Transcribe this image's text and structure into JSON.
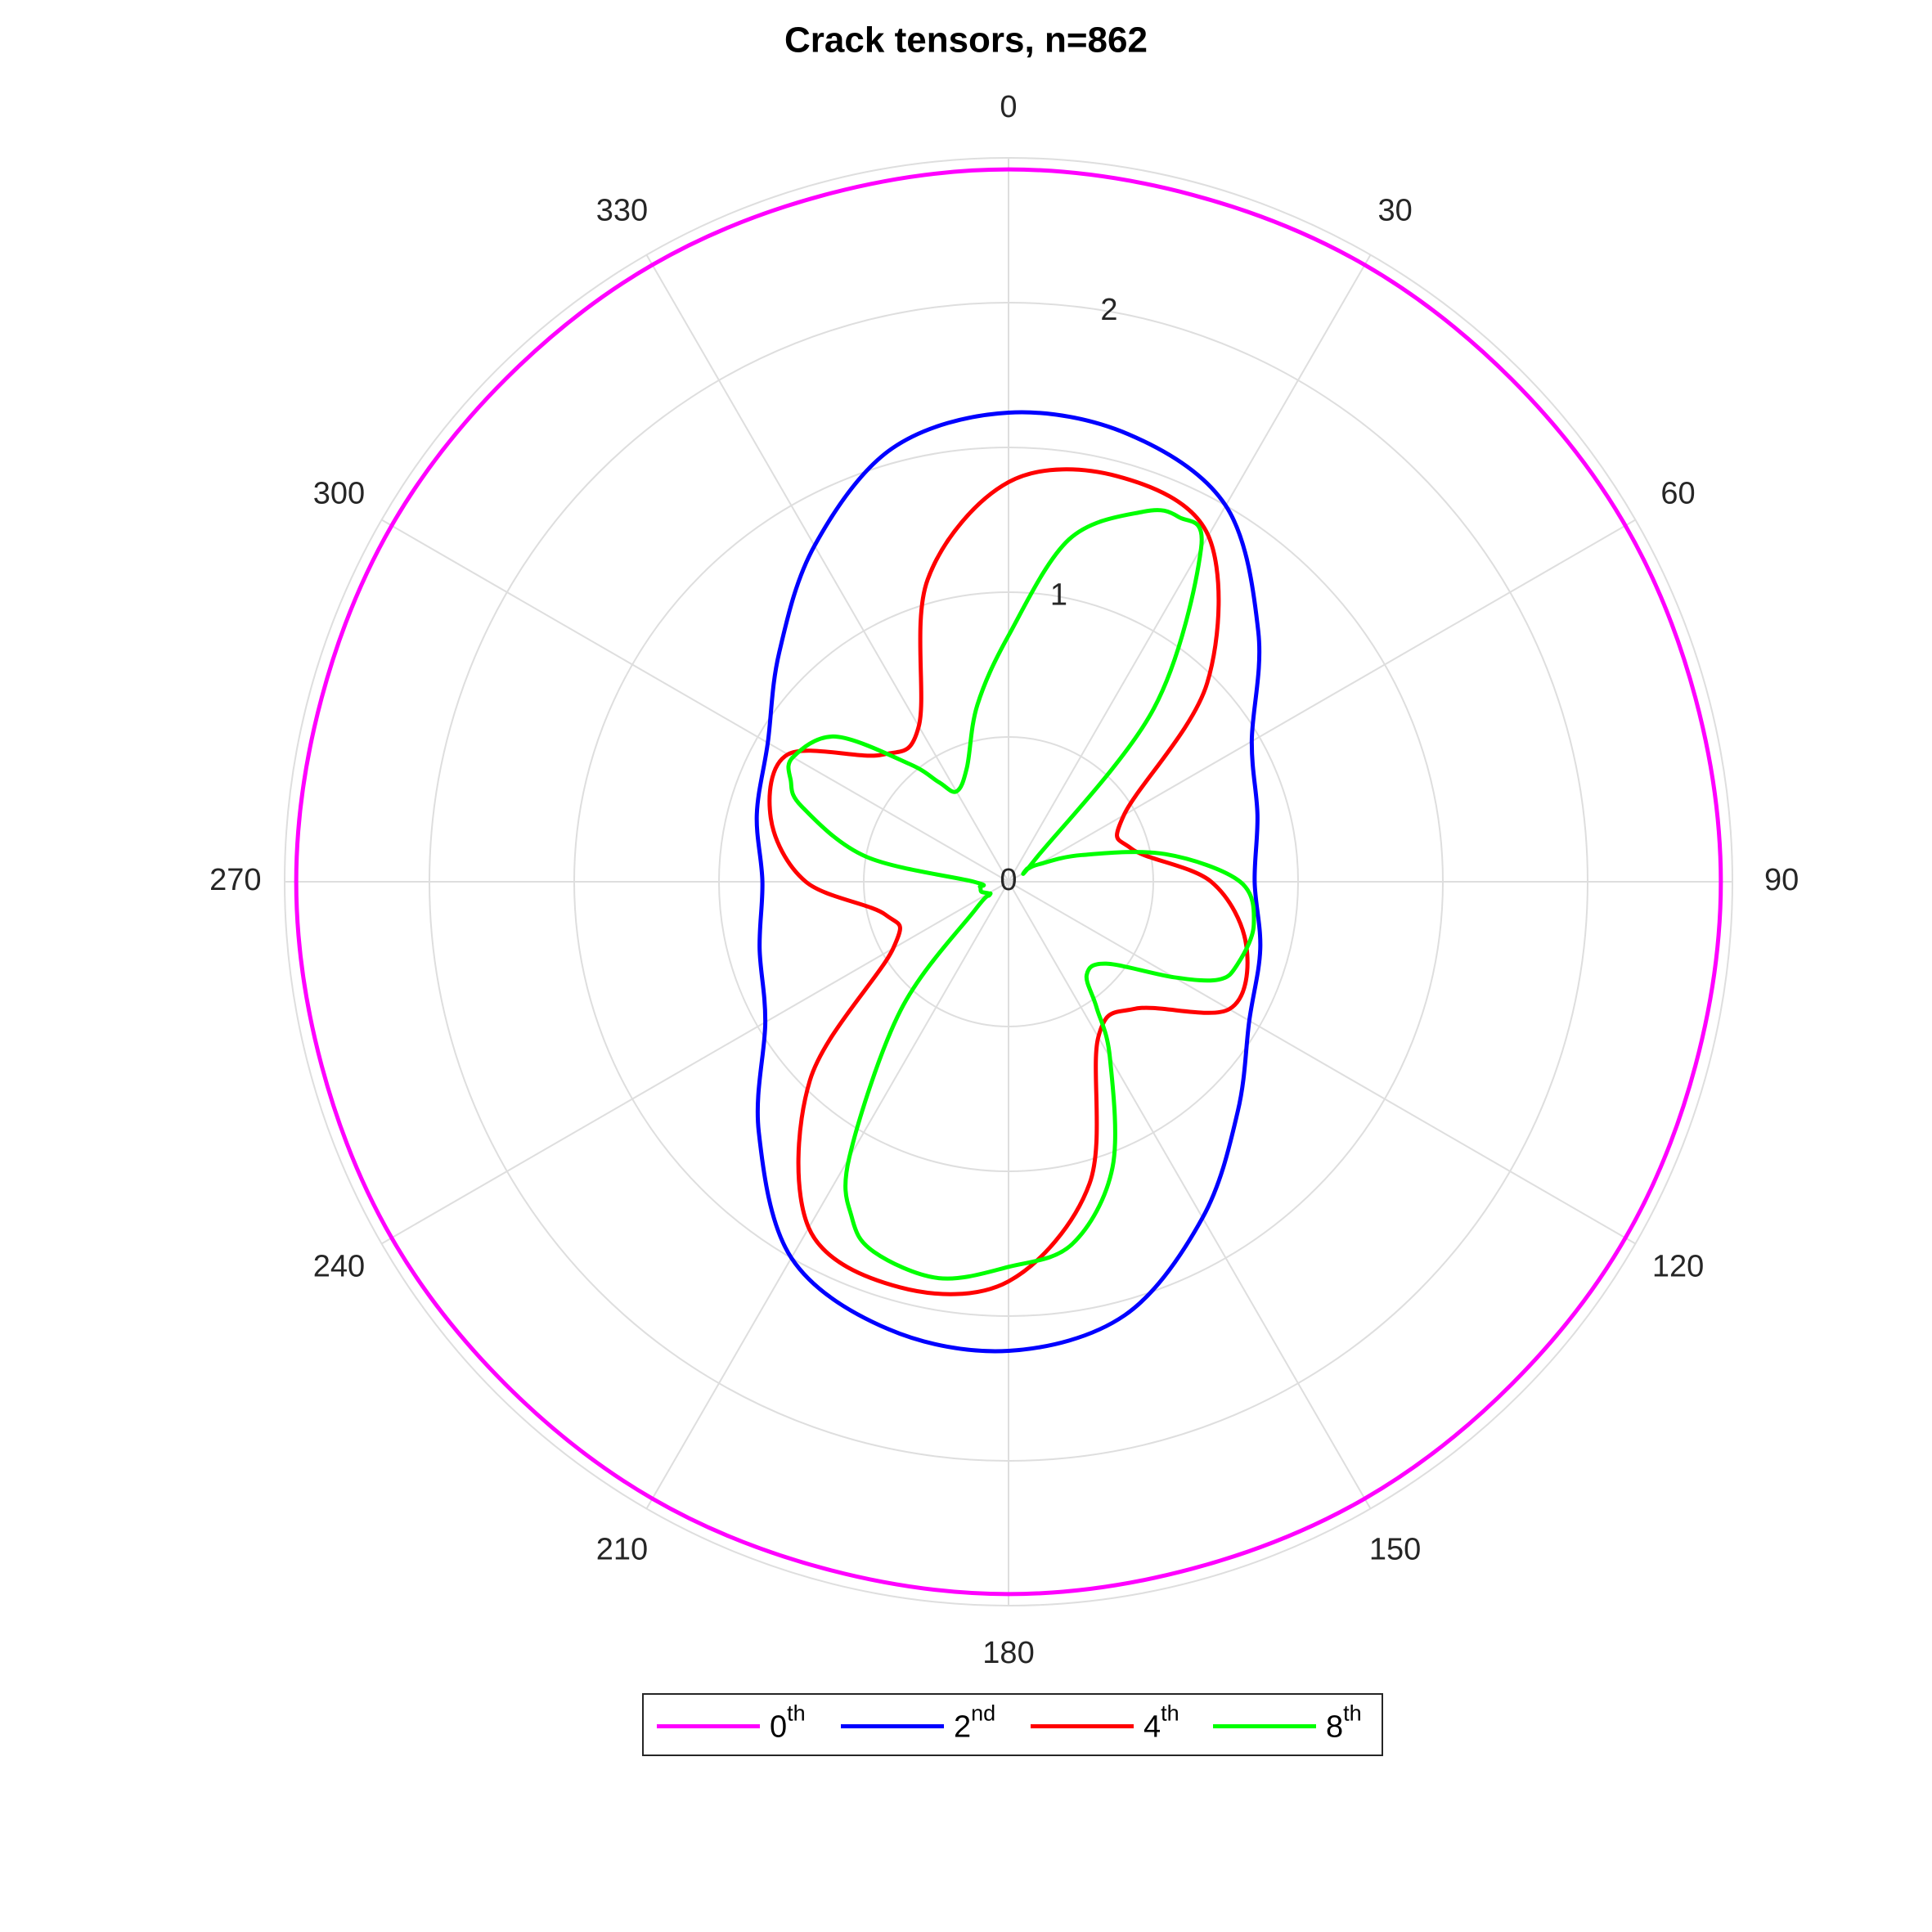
{
  "chart_data": {
    "type": "polar-line",
    "title": "Crack tensors, n=862",
    "theta_zero_location": "top",
    "theta_direction": "clockwise",
    "theta_ticks": [
      0,
      30,
      60,
      90,
      120,
      150,
      180,
      210,
      240,
      270,
      300,
      330
    ],
    "theta_tick_labels": [
      "0",
      "30",
      "60",
      "90",
      "120",
      "150",
      "180",
      "210",
      "240",
      "270",
      "300",
      "330"
    ],
    "r_lim": [
      0,
      2.5
    ],
    "r_ticks_labeled": [
      0,
      1,
      2
    ],
    "r_tick_labels": [
      "0",
      "1",
      "2"
    ],
    "r_tick_label_angle_deg": 10,
    "grid": true,
    "legend_placement": "bottom",
    "series": [
      {
        "name": "0",
        "name_sup": "th",
        "color": "#ff00ff",
        "theta_deg": [
          0,
          30,
          60,
          90,
          120,
          150,
          180,
          210,
          240,
          270,
          300,
          330
        ],
        "r": [
          2.46,
          2.46,
          2.46,
          2.46,
          2.46,
          2.46,
          2.46,
          2.46,
          2.46,
          2.46,
          2.46,
          2.46
        ]
      },
      {
        "name": "2",
        "name_sup": "nd",
        "color": "#0000ff",
        "theta_deg": [
          0,
          15,
          30,
          45,
          60,
          75,
          90,
          105,
          120,
          135,
          150,
          165,
          180,
          195,
          210,
          225,
          240,
          255,
          270,
          285,
          300,
          315,
          330,
          345
        ],
        "r": [
          1.62,
          1.6,
          1.5,
          1.22,
          0.97,
          0.89,
          0.85,
          0.9,
          0.96,
          1.12,
          1.34,
          1.55,
          1.62,
          1.6,
          1.5,
          1.22,
          0.97,
          0.89,
          0.85,
          0.9,
          0.96,
          1.12,
          1.34,
          1.55
        ]
      },
      {
        "name": "4",
        "name_sup": "th",
        "color": "#ff0000",
        "theta_deg": [
          0,
          15,
          30,
          45,
          60,
          75,
          90,
          105,
          120,
          135,
          150,
          165,
          180,
          195,
          210,
          225,
          240,
          255,
          270,
          285,
          300,
          315,
          330,
          345
        ],
        "r": [
          1.38,
          1.45,
          1.38,
          0.97,
          0.46,
          0.44,
          0.7,
          0.85,
          0.88,
          0.62,
          0.62,
          1.08,
          1.38,
          1.45,
          1.38,
          0.97,
          0.46,
          0.44,
          0.7,
          0.85,
          0.88,
          0.62,
          0.62,
          1.08
        ]
      },
      {
        "name": "8",
        "name_sup": "th",
        "color": "#00ff00",
        "theta_deg": [
          0,
          10,
          20,
          25,
          30,
          40,
          50,
          55,
          60,
          70,
          80,
          90,
          100,
          110,
          115,
          120,
          130,
          140,
          145,
          150,
          160,
          170,
          180,
          190,
          200,
          205,
          210,
          220,
          230,
          235,
          240,
          250,
          260,
          270,
          280,
          290,
          295,
          300,
          310,
          320,
          325,
          330,
          340,
          350
        ],
        "r": [
          0.85,
          1.2,
          1.36,
          1.39,
          1.33,
          0.78,
          0.12,
          0.08,
          0.12,
          0.27,
          0.55,
          0.8,
          0.86,
          0.84,
          0.8,
          0.66,
          0.44,
          0.42,
          0.53,
          0.7,
          1.05,
          1.27,
          1.33,
          1.39,
          1.36,
          1.28,
          1.1,
          0.58,
          0.15,
          0.08,
          0.08,
          0.1,
          0.1,
          0.12,
          0.5,
          0.76,
          0.83,
          0.86,
          0.78,
          0.53,
          0.42,
          0.36,
          0.42,
          0.62
        ]
      }
    ]
  }
}
